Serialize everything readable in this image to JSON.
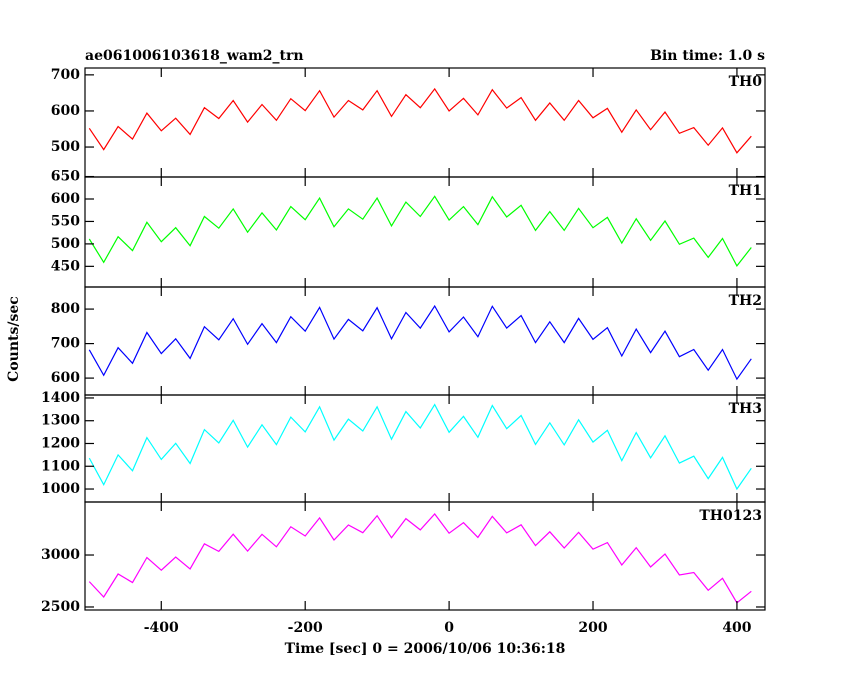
{
  "chart_data": [
    {
      "type": "line",
      "title": "ae061006103618_wam2_trn",
      "subtitle": "Bin time: 1.0 s",
      "x": [
        -500,
        -480,
        -460,
        -440,
        -420,
        -400,
        -380,
        -360,
        -340,
        -320,
        -300,
        -280,
        -260,
        -240,
        -220,
        -200,
        -180,
        -160,
        -140,
        -120,
        -100,
        -80,
        -60,
        -40,
        -20,
        0,
        20,
        40,
        60,
        80,
        100,
        120,
        140,
        160,
        180,
        200,
        220,
        240,
        260,
        280,
        300,
        320,
        340,
        360,
        380,
        400,
        420
      ],
      "series": [
        {
          "name": "TH0",
          "color": "#ff0000",
          "values": [
            552,
            493,
            557,
            522,
            594,
            545,
            580,
            535,
            609,
            579,
            629,
            569,
            618,
            574,
            634,
            601,
            656,
            583,
            629,
            603,
            656,
            585,
            645,
            609,
            661,
            600,
            635,
            589,
            659,
            608,
            637,
            574,
            622,
            574,
            629,
            581,
            607,
            541,
            603,
            548,
            597,
            538,
            554,
            505,
            553,
            484,
            530
          ]
        }
      ],
      "xlim": [
        -506,
        439
      ],
      "xticks": [
        -400,
        -200,
        0,
        200,
        400
      ],
      "ylim": [
        417,
        719
      ],
      "yticks": [
        500,
        600,
        700
      ]
    },
    {
      "type": "line",
      "x": [
        -500,
        -480,
        -460,
        -440,
        -420,
        -400,
        -380,
        -360,
        -340,
        -320,
        -300,
        -280,
        -260,
        -240,
        -220,
        -200,
        -180,
        -160,
        -140,
        -120,
        -100,
        -80,
        -60,
        -40,
        -20,
        0,
        20,
        40,
        60,
        80,
        100,
        120,
        140,
        160,
        180,
        200,
        220,
        240,
        260,
        280,
        300,
        320,
        340,
        360,
        380,
        400,
        420
      ],
      "series": [
        {
          "name": "TH1",
          "color": "#00ff00",
          "values": [
            511,
            459,
            516,
            485,
            548,
            505,
            536,
            496,
            561,
            535,
            578,
            526,
            569,
            531,
            583,
            554,
            602,
            538,
            578,
            555,
            602,
            540,
            593,
            561,
            606,
            553,
            583,
            543,
            605,
            560,
            586,
            530,
            572,
            530,
            579,
            536,
            559,
            502,
            556,
            508,
            551,
            499,
            513,
            470,
            512,
            451,
            492
          ]
        }
      ],
      "xlim": [
        -506,
        439
      ],
      "xticks": [
        -400,
        -200,
        0,
        200,
        400
      ],
      "ylim": [
        404,
        649
      ],
      "yticks": [
        450,
        500,
        550,
        600,
        650
      ]
    },
    {
      "type": "line",
      "ylabel": "Counts/sec",
      "x": [
        -500,
        -480,
        -460,
        -440,
        -420,
        -400,
        -380,
        -360,
        -340,
        -320,
        -300,
        -280,
        -260,
        -240,
        -220,
        -200,
        -180,
        -160,
        -140,
        -120,
        -100,
        -80,
        -60,
        -40,
        -20,
        0,
        20,
        40,
        60,
        80,
        100,
        120,
        140,
        160,
        180,
        200,
        220,
        240,
        260,
        280,
        300,
        320,
        340,
        360,
        380,
        400,
        420
      ],
      "series": [
        {
          "name": "TH2",
          "color": "#0000ff",
          "values": [
            682,
            608,
            688,
            643,
            732,
            671,
            714,
            657,
            749,
            711,
            772,
            698,
            758,
            703,
            778,
            736,
            805,
            713,
            770,
            737,
            804,
            714,
            790,
            745,
            809,
            734,
            777,
            720,
            808,
            745,
            781,
            703,
            763,
            703,
            773,
            712,
            746,
            664,
            742,
            674,
            736,
            662,
            683,
            623,
            683,
            597,
            656
          ]
        }
      ],
      "xlim": [
        -506,
        439
      ],
      "xticks": [
        -400,
        -200,
        0,
        200,
        400
      ],
      "ylim": [
        551,
        864
      ],
      "yticks": [
        600,
        700,
        800
      ]
    },
    {
      "type": "line",
      "x": [
        -500,
        -480,
        -460,
        -440,
        -420,
        -400,
        -380,
        -360,
        -340,
        -320,
        -300,
        -280,
        -260,
        -240,
        -220,
        -200,
        -180,
        -160,
        -140,
        -120,
        -100,
        -80,
        -60,
        -40,
        -20,
        0,
        20,
        40,
        60,
        80,
        100,
        120,
        140,
        160,
        180,
        200,
        220,
        240,
        260,
        280,
        300,
        320,
        340,
        360,
        380,
        400,
        420
      ],
      "series": [
        {
          "name": "TH3",
          "color": "#00ffff",
          "values": [
            1136,
            1019,
            1150,
            1080,
            1226,
            1130,
            1201,
            1112,
            1261,
            1202,
            1302,
            1184,
            1282,
            1195,
            1316,
            1251,
            1361,
            1215,
            1307,
            1255,
            1361,
            1219,
            1340,
            1268,
            1371,
            1249,
            1319,
            1227,
            1367,
            1265,
            1323,
            1196,
            1291,
            1194,
            1304,
            1206,
            1258,
            1125,
            1248,
            1137,
            1234,
            1114,
            1144,
            1046,
            1139,
            1000,
            1091
          ]
        }
      ],
      "xlim": [
        -506,
        439
      ],
      "xticks": [
        -400,
        -200,
        0,
        200,
        400
      ],
      "ylim": [
        943,
        1413
      ],
      "yticks": [
        1000,
        1100,
        1200,
        1300,
        1400
      ]
    },
    {
      "type": "line",
      "xlabel": "Time [sec] 0 = 2006/10/06 10:36:18",
      "x": [
        -500,
        -480,
        -460,
        -440,
        -420,
        -400,
        -380,
        -360,
        -340,
        -320,
        -300,
        -280,
        -260,
        -240,
        -220,
        -200,
        -180,
        -160,
        -140,
        -120,
        -100,
        -80,
        -60,
        -40,
        -20,
        0,
        20,
        40,
        60,
        80,
        100,
        120,
        140,
        160,
        180,
        200,
        220,
        240,
        260,
        280,
        300,
        320,
        340,
        360,
        380,
        400,
        420
      ],
      "series": [
        {
          "name": "TH0123",
          "color": "#ff00ff",
          "values": [
            2744,
            2596,
            2817,
            2736,
            2976,
            2854,
            2981,
            2866,
            3108,
            3035,
            3200,
            3038,
            3199,
            3079,
            3271,
            3183,
            3357,
            3144,
            3289,
            3215,
            3378,
            3167,
            3350,
            3242,
            3395,
            3210,
            3311,
            3169,
            3372,
            3213,
            3291,
            3091,
            3223,
            3067,
            3218,
            3056,
            3119,
            2904,
            3070,
            2885,
            3010,
            2808,
            2832,
            2661,
            2776,
            2540,
            2651
          ]
        }
      ],
      "xlim": [
        -506,
        439
      ],
      "xticks": [
        -400,
        -200,
        0,
        200,
        400
      ],
      "ylim": [
        2471,
        3510
      ],
      "yticks": [
        2500,
        3000
      ]
    }
  ]
}
